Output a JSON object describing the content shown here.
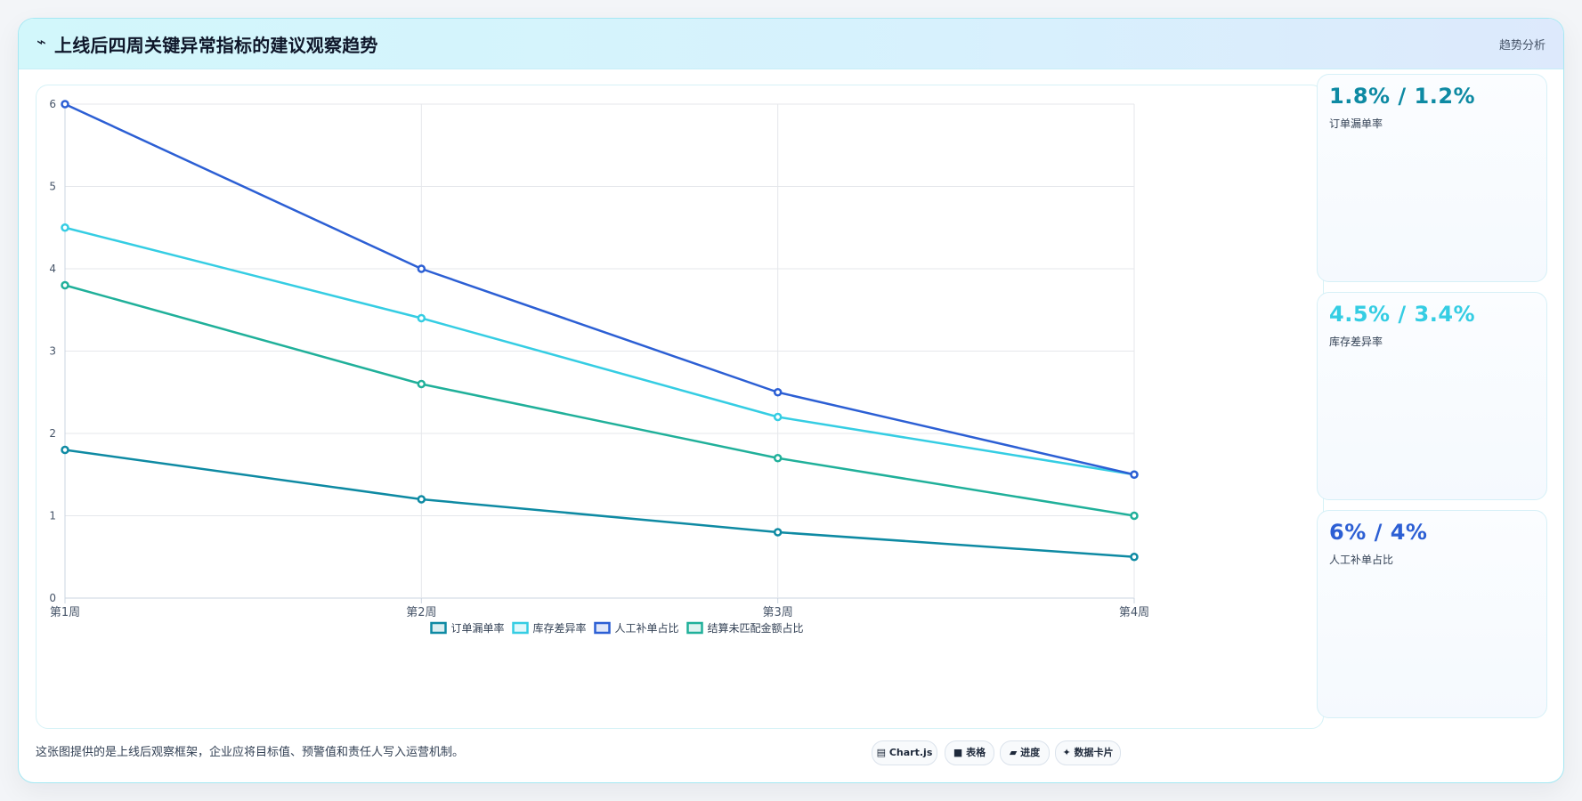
{
  "header": {
    "icon": "trend-icon",
    "icon_glyph": "⌁",
    "title": "上线后四周关键异常指标的建议观察趋势",
    "link": "趋势分析"
  },
  "chart_data": {
    "type": "line",
    "x": [
      "第1周",
      "第2周",
      "第3周",
      "第4周"
    ],
    "ylim": [
      0,
      6
    ],
    "yticks": [
      0,
      1,
      2,
      3,
      4,
      5,
      6
    ],
    "grid": true,
    "legend_position": "bottom",
    "series": [
      {
        "name": "订单漏单率",
        "color": "#0e8aa3",
        "values": [
          1.8,
          1.2,
          0.8,
          0.5
        ]
      },
      {
        "name": "库存差异率",
        "color": "#35cde3",
        "values": [
          4.5,
          3.4,
          2.2,
          1.5
        ]
      },
      {
        "name": "人工补单占比",
        "color": "#2c5fd4",
        "values": [
          6,
          4,
          2.5,
          1.5
        ]
      },
      {
        "name": "结算未匹配金额占比",
        "color": "#20b09a",
        "values": [
          3.8,
          2.6,
          1.7,
          1.0
        ]
      }
    ]
  },
  "stats": [
    {
      "value": "1.8% / 1.2%",
      "label": "订单漏单率",
      "color": "#0e8aa3"
    },
    {
      "value": "4.5% / 3.4%",
      "label": "库存差异率",
      "color": "#35cde3"
    },
    {
      "value": "6% / 4%",
      "label": "人工补单占比",
      "color": "#2c5fd4"
    }
  ],
  "footer": {
    "note": "这张图提供的是上线后观察框架，企业应将目标值、预警值和责任人写入运营机制。",
    "badges": [
      {
        "icon": "chart-icon",
        "glyph": "▤",
        "label": "Chart.js"
      },
      {
        "icon": "table-icon",
        "glyph": "■",
        "label": "表格"
      },
      {
        "icon": "progress-icon",
        "glyph": "▰",
        "label": "进度"
      },
      {
        "icon": "card-icon",
        "glyph": "✦",
        "label": "数据卡片"
      }
    ]
  }
}
